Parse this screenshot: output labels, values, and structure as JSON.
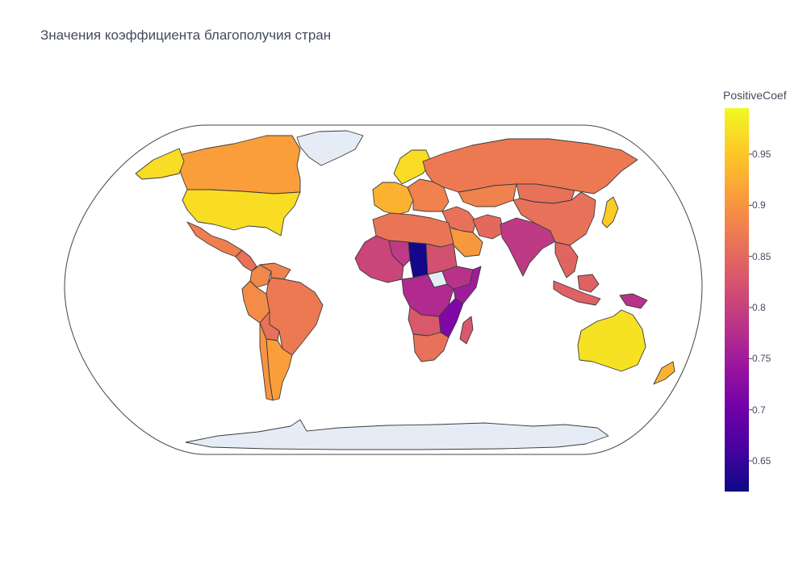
{
  "title": "Значения коэффициента благополучия стран",
  "colorbar": {
    "title": "PositiveCoef",
    "min": 0.62,
    "max": 0.995,
    "ticks": [
      "0.65",
      "0.7",
      "0.75",
      "0.8",
      "0.85",
      "0.9",
      "0.95"
    ],
    "colorscale": [
      "#0d0887",
      "#46039f",
      "#7201a8",
      "#9c179e",
      "#bd3786",
      "#d8576b",
      "#ed7953",
      "#fb9f3a",
      "#fdca26",
      "#f0f921"
    ]
  },
  "regions": [
    {
      "name": "Canada",
      "value": 0.91
    },
    {
      "name": "United States",
      "value": 0.97
    },
    {
      "name": "Greenland",
      "value": null
    },
    {
      "name": "Mexico",
      "value": 0.875
    },
    {
      "name": "Central America",
      "value": 0.86
    },
    {
      "name": "Colombia",
      "value": 0.885
    },
    {
      "name": "Venezuela",
      "value": 0.88
    },
    {
      "name": "Peru",
      "value": 0.89
    },
    {
      "name": "Brazil",
      "value": 0.87
    },
    {
      "name": "Bolivia",
      "value": 0.86
    },
    {
      "name": "Argentina",
      "value": 0.91
    },
    {
      "name": "Chile",
      "value": 0.9
    },
    {
      "name": "Western Europe",
      "value": 0.93
    },
    {
      "name": "Scandinavia",
      "value": 0.97
    },
    {
      "name": "Eastern Europe",
      "value": 0.88
    },
    {
      "name": "Russia",
      "value": 0.87
    },
    {
      "name": "Kazakhstan",
      "value": 0.88
    },
    {
      "name": "Middle East",
      "value": 0.86
    },
    {
      "name": "Saudi Arabia",
      "value": 0.905
    },
    {
      "name": "Iran",
      "value": 0.85
    },
    {
      "name": "South Asia",
      "value": 0.79
    },
    {
      "name": "China",
      "value": 0.86
    },
    {
      "name": "Mongolia",
      "value": 0.86
    },
    {
      "name": "Japan",
      "value": 0.955
    },
    {
      "name": "South-East Asia",
      "value": 0.845
    },
    {
      "name": "Indonesia",
      "value": 0.84
    },
    {
      "name": "Papua New Guinea",
      "value": 0.78
    },
    {
      "name": "Australia",
      "value": 0.975
    },
    {
      "name": "New Zealand",
      "value": 0.93
    },
    {
      "name": "North Africa",
      "value": 0.865
    },
    {
      "name": "Sahel",
      "value": 0.79
    },
    {
      "name": "Chad",
      "value": 0.625
    },
    {
      "name": "West Africa",
      "value": 0.805
    },
    {
      "name": "Sudan",
      "value": 0.82
    },
    {
      "name": "Ethiopia",
      "value": 0.78
    },
    {
      "name": "Somalia",
      "value": 0.75
    },
    {
      "name": "South Sudan",
      "value": null
    },
    {
      "name": "Central Africa",
      "value": 0.77
    },
    {
      "name": "Tanzania",
      "value": 0.715
    },
    {
      "name": "Angola",
      "value": 0.83
    },
    {
      "name": "Southern Africa",
      "value": 0.86
    },
    {
      "name": "Madagascar",
      "value": 0.83
    },
    {
      "name": "Antarctica",
      "value": null
    }
  ]
}
